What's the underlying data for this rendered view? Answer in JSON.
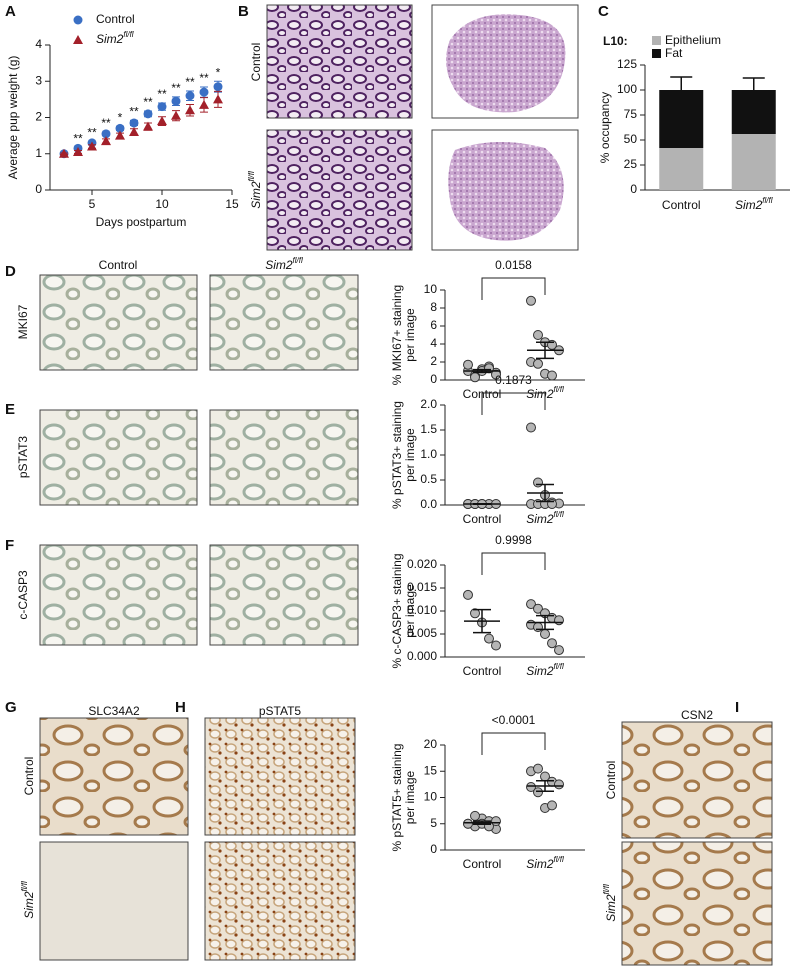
{
  "panel_letters": [
    "A",
    "B",
    "C",
    "D",
    "E",
    "F",
    "G",
    "H",
    "I"
  ],
  "micrographs": {
    "B_rows": [
      "Control",
      {
        "text": "Sim2",
        "sup": "fl/fl"
      }
    ],
    "D_columns": [
      "Control",
      {
        "text": "Sim2",
        "sup": "fl/fl"
      }
    ],
    "row_markers": [
      "MKI67",
      "pSTAT3",
      "c-CASP3"
    ],
    "G_title": "SLC34A2",
    "G_rows": [
      "Control",
      {
        "text": "Sim2",
        "sup": "fl/fl"
      }
    ],
    "H_title": "pSTAT5",
    "I_title": "CSN2",
    "I_rows": [
      "Control",
      {
        "text": "Sim2",
        "sup": "fl/fl"
      }
    ]
  },
  "chart_data": [
    {
      "type": "line_errorbar",
      "ylabel": "Average pup weight (g)",
      "xlabel": "Days postpartum",
      "x": [
        3,
        4,
        5,
        6,
        7,
        8,
        9,
        10,
        11,
        12,
        13,
        14
      ],
      "series": [
        {
          "name": "Control",
          "color": "#3a6fc4",
          "marker": "circle",
          "values": [
            1.0,
            1.15,
            1.3,
            1.55,
            1.7,
            1.85,
            2.1,
            2.3,
            2.45,
            2.6,
            2.7,
            2.85
          ],
          "errors": [
            0.02,
            0.03,
            0.04,
            0.05,
            0.06,
            0.07,
            0.08,
            0.1,
            0.12,
            0.13,
            0.14,
            0.15
          ]
        },
        {
          "name": {
            "text": "Sim2",
            "sup": "fl/fl"
          },
          "color": "#a3202a",
          "marker": "triangle",
          "values": [
            1.0,
            1.05,
            1.2,
            1.35,
            1.5,
            1.6,
            1.75,
            1.9,
            2.05,
            2.2,
            2.35,
            2.5
          ],
          "errors": [
            0.02,
            0.04,
            0.05,
            0.06,
            0.07,
            0.09,
            0.1,
            0.12,
            0.14,
            0.16,
            0.2,
            0.22
          ]
        }
      ],
      "annotations": [
        {
          "x": 4,
          "text": "**"
        },
        {
          "x": 5,
          "text": "**"
        },
        {
          "x": 6,
          "text": "**"
        },
        {
          "x": 7,
          "text": "*"
        },
        {
          "x": 8,
          "text": "**"
        },
        {
          "x": 9,
          "text": "**"
        },
        {
          "x": 10,
          "text": "**"
        },
        {
          "x": 11,
          "text": "**"
        },
        {
          "x": 12,
          "text": "**"
        },
        {
          "x": 13,
          "text": "**"
        },
        {
          "x": 14,
          "text": "*"
        }
      ],
      "xlim": [
        2,
        15
      ],
      "xticks": [
        5,
        10,
        15
      ],
      "ylim": [
        0,
        4
      ],
      "yticks": [
        0,
        1,
        2,
        3,
        4
      ]
    },
    {
      "type": "stacked_bar",
      "ylabel": "% occupancy",
      "legend_title": "L10:",
      "categories": [
        "Control",
        {
          "text": "Sim2",
          "sup": "fl/fl"
        }
      ],
      "series": [
        {
          "name": "Epithelium",
          "color": "#b3b3b3",
          "values": [
            42,
            56
          ],
          "errors": [
            13,
            12
          ]
        },
        {
          "name": "Fat",
          "color": "#111111",
          "values": [
            58,
            44
          ],
          "errors": [
            13,
            12
          ]
        }
      ],
      "ylim": [
        0,
        125
      ],
      "yticks": [
        0,
        25,
        50,
        75,
        100,
        125
      ]
    },
    {
      "type": "dot_plot",
      "ylabel": [
        "% MKI67+ staining",
        "per image"
      ],
      "p_value": "0.0158",
      "categories": [
        "Control",
        {
          "text": "Sim2",
          "sup": "fl/fl"
        }
      ],
      "groups": [
        {
          "values": [
            1.0,
            0.5,
            1.2,
            1.5,
            0.8,
            1.7,
            0.3,
            1.0,
            1.3,
            0.6
          ],
          "mean": 1.0,
          "sem": 0.15
        },
        {
          "values": [
            8.8,
            5.0,
            4.2,
            3.9,
            3.3,
            2.0,
            1.8,
            0.7,
            0.5
          ],
          "mean": 3.3,
          "sem": 0.9
        }
      ],
      "ylim": [
        0,
        10
      ],
      "yticks": [
        0,
        2,
        4,
        6,
        8,
        10
      ]
    },
    {
      "type": "dot_plot",
      "ylabel": [
        "% pSTAT3+ staining",
        "per image"
      ],
      "p_value": "0.1873",
      "categories": [
        "Control",
        {
          "text": "Sim2",
          "sup": "fl/fl"
        }
      ],
      "groups": [
        {
          "values": [
            0.02,
            0.02,
            0.02,
            0.02,
            0.02,
            0.02,
            0.02,
            0.02
          ],
          "mean": 0.02,
          "sem": 0.005
        },
        {
          "values": [
            1.55,
            0.45,
            0.2,
            0.05,
            0.03,
            0.02,
            0.02,
            0.02,
            0.02
          ],
          "mean": 0.24,
          "sem": 0.17
        }
      ],
      "ylim": [
        0,
        2.0
      ],
      "yticks": [
        {
          "value": 0,
          "label": "0.0"
        },
        0.5,
        {
          "value": 1,
          "label": "1.0"
        },
        1.5,
        {
          "value": 2,
          "label": "2.0"
        }
      ]
    },
    {
      "type": "dot_plot",
      "ylabel": [
        "% c-CASP3+ staining",
        "per image"
      ],
      "p_value": "0.9998",
      "categories": [
        "Control",
        {
          "text": "Sim2",
          "sup": "fl/fl"
        }
      ],
      "groups": [
        {
          "values": [
            0.0135,
            0.0095,
            0.0075,
            0.004,
            0.0025
          ],
          "mean": 0.0078,
          "sem": 0.0025
        },
        {
          "values": [
            0.0115,
            0.0105,
            0.0095,
            0.0085,
            0.008,
            0.007,
            0.0065,
            0.005,
            0.003,
            0.0015
          ],
          "mean": 0.0075,
          "sem": 0.0015
        }
      ],
      "ylim": [
        0,
        0.02
      ],
      "yticks": [
        {
          "value": 0,
          "label": "0.000"
        },
        {
          "value": 0.005,
          "label": "0.005"
        },
        {
          "value": 0.01,
          "label": "0.010"
        },
        {
          "value": 0.015,
          "label": "0.015"
        },
        {
          "value": 0.02,
          "label": "0.020"
        }
      ]
    },
    {
      "type": "dot_plot",
      "ylabel": [
        "% pSTAT5+ staining",
        "per image"
      ],
      "p_value": "<0.0001",
      "categories": [
        "Control",
        {
          "text": "Sim2",
          "sup": "fl/fl"
        }
      ],
      "groups": [
        {
          "values": [
            5.0,
            4.5,
            6.0,
            5.5,
            4.0,
            5.0,
            6.5,
            5.0,
            4.5,
            5.5
          ],
          "mean": 5.2,
          "sem": 0.3
        },
        {
          "values": [
            15.0,
            15.5,
            14.0,
            13.0,
            12.5,
            12.0,
            11.0,
            8.0,
            8.5
          ],
          "mean": 12.2,
          "sem": 1.0
        }
      ],
      "ylim": [
        0,
        20
      ],
      "yticks": [
        0,
        5,
        10,
        15,
        20
      ]
    }
  ]
}
